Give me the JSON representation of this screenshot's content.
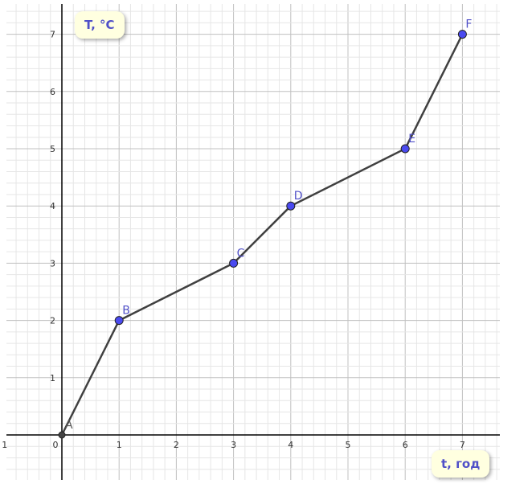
{
  "chart_data": {
    "type": "line",
    "xlabel": "t, год",
    "ylabel": "T, °C",
    "xlim": [
      -1,
      7.6
    ],
    "ylim": [
      -0.8,
      7.5
    ],
    "grid": true,
    "x_ticks": [
      "1",
      "0",
      "1",
      "2",
      "3",
      "4",
      "5",
      "6",
      "7"
    ],
    "x_tick_values": [
      -1,
      0,
      1,
      2,
      3,
      4,
      5,
      6,
      7
    ],
    "y_ticks": [
      "1",
      "2",
      "3",
      "4",
      "5",
      "6",
      "7"
    ],
    "points": [
      {
        "name": "A",
        "x": 0,
        "y": 0
      },
      {
        "name": "B",
        "x": 1,
        "y": 2
      },
      {
        "name": "C",
        "x": 3,
        "y": 3
      },
      {
        "name": "D",
        "x": 4,
        "y": 4
      },
      {
        "name": "E",
        "x": 6,
        "y": 5
      },
      {
        "name": "F",
        "x": 7,
        "y": 7
      }
    ],
    "colors": {
      "point": "#4a4af0",
      "line": "#404040",
      "label": "#5050c8",
      "grid_major": "#c0c0c0",
      "grid_minor": "#e6e6e6"
    }
  }
}
